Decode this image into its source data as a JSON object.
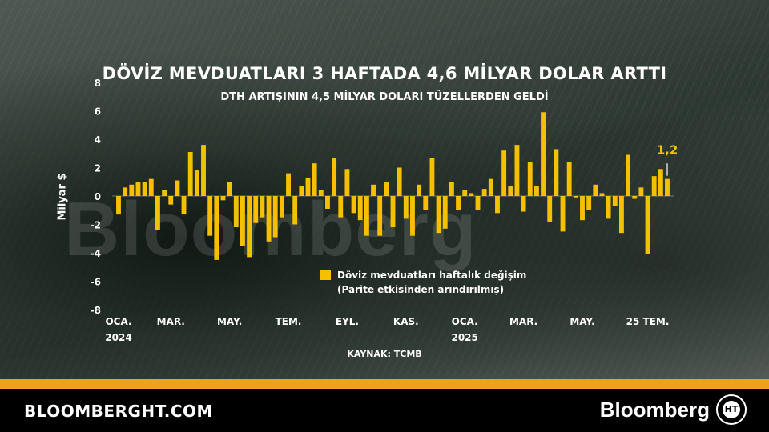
{
  "header": {
    "title": "DÖVİZ MEVDUATLARI 3 HAFTADA 4,6 MİLYAR DOLAR ARTTI",
    "subtitle": "DTH ARTIŞININ 4,5 MİLYAR DOLARI TÜZELLERDEN GELDİ"
  },
  "watermark": "Bloomberg",
  "legend": {
    "line1": "Döviz mevduatları haftalık değişim",
    "line2": "(Parite etkisinden arındırılmış)"
  },
  "source": "KAYNAK: TCMB",
  "footer": {
    "site": "BLOOMBERGHT.COM",
    "brand": "Bloomberg",
    "logo_text": "HT"
  },
  "chart_data": {
    "type": "bar",
    "ylabel": "Milyar $",
    "ylim": [
      -8,
      8
    ],
    "y_ticks": [
      8,
      6,
      4,
      2,
      0,
      -2,
      -4,
      -6,
      -8
    ],
    "x_ticks": [
      {
        "label": "OCA.",
        "sub": "2024",
        "index": 0
      },
      {
        "label": "MAR.",
        "sub": "",
        "index": 8
      },
      {
        "label": "MAY.",
        "sub": "",
        "index": 17
      },
      {
        "label": "TEM.",
        "sub": "",
        "index": 26
      },
      {
        "label": "EYL.",
        "sub": "",
        "index": 35
      },
      {
        "label": "KAS.",
        "sub": "",
        "index": 44
      },
      {
        "label": "OCA.",
        "sub": "2025",
        "index": 53
      },
      {
        "label": "MAR.",
        "sub": "",
        "index": 62
      },
      {
        "label": "MAY.",
        "sub": "",
        "index": 71
      },
      {
        "label": "25 TEM.",
        "sub": "",
        "index": 81
      }
    ],
    "bar_color": "#f5c000",
    "values": [
      -1.3,
      0.6,
      0.8,
      1.0,
      1.0,
      1.2,
      -2.4,
      0.4,
      -0.6,
      1.1,
      -1.3,
      3.1,
      1.8,
      3.6,
      -2.8,
      -4.5,
      -0.3,
      1.0,
      -2.2,
      -3.5,
      -4.3,
      -1.9,
      -1.5,
      -3.2,
      -2.9,
      -1.5,
      1.6,
      -2.0,
      0.7,
      1.3,
      2.3,
      0.4,
      -0.9,
      2.7,
      -1.5,
      1.9,
      -1.2,
      -1.7,
      -2.8,
      0.8,
      -2.8,
      1.0,
      -2.2,
      2.0,
      -1.6,
      -2.8,
      0.8,
      -1.0,
      2.7,
      -2.6,
      -2.3,
      1.0,
      -1.0,
      0.4,
      0.2,
      -1.0,
      0.5,
      1.2,
      -1.2,
      3.2,
      0.7,
      3.6,
      -1.1,
      2.4,
      0.7,
      5.9,
      -1.8,
      3.3,
      -2.5,
      2.4,
      -0.1,
      -1.7,
      -1.0,
      0.8,
      0.2,
      -1.6,
      -0.7,
      -2.6,
      2.9,
      -0.2,
      0.6,
      -4.1,
      1.4,
      1.9,
      1.2
    ],
    "last_label": "1,2"
  }
}
